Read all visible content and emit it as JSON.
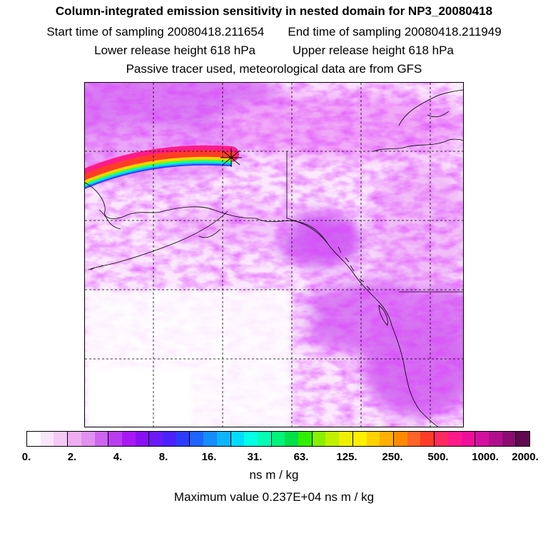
{
  "header": {
    "title": "Column-integrated emission sensitivity in nested domain for NP3_20080418",
    "start_label": "Start time of sampling 20080418.211654",
    "end_label": "End time of sampling 20080418.211949",
    "lower_label": "Lower release height  618 hPa",
    "upper_label": "Upper release height  618 hPa",
    "note": "Passive tracer used, meteorological data are from GFS"
  },
  "colorbar": {
    "ticks": [
      "0.",
      "2.",
      "4.",
      "8.",
      "16.",
      "31.",
      "63.",
      "125.",
      "250.",
      "500.",
      "1000.",
      "2000."
    ],
    "colors": [
      "#ffffff",
      "#fae6fb",
      "#f4c9f6",
      "#eeadf1",
      "#e190f0",
      "#cc66ee",
      "#bb3df0",
      "#a818f5",
      "#8a10f4",
      "#6a1bf8",
      "#4a22ff",
      "#2d3bff",
      "#1e64ff",
      "#158cff",
      "#0fb4ff",
      "#00dcff",
      "#00ffe6",
      "#00ffb4",
      "#00f27a",
      "#00e04a",
      "#33ee00",
      "#88f000",
      "#c0f000",
      "#eef000",
      "#fff000",
      "#ffd200",
      "#ffb000",
      "#ff8a00",
      "#ff6428",
      "#ff3c28",
      "#ff2a60",
      "#ff1a8a",
      "#f00f9a",
      "#d410a0",
      "#b0108e",
      "#8c0c72",
      "#600850"
    ],
    "units": "ns m / kg",
    "max_text": "Maximum value  0.237E+04 ns m / kg"
  },
  "map": {
    "background": "#ffffff",
    "plume_colors": [
      "#ff1a8a",
      "#ff3c28",
      "#ffd200",
      "#88f000",
      "#00ffb4",
      "#0fb4ff",
      "#2d3bff"
    ],
    "release_marker": "asterisk"
  }
}
